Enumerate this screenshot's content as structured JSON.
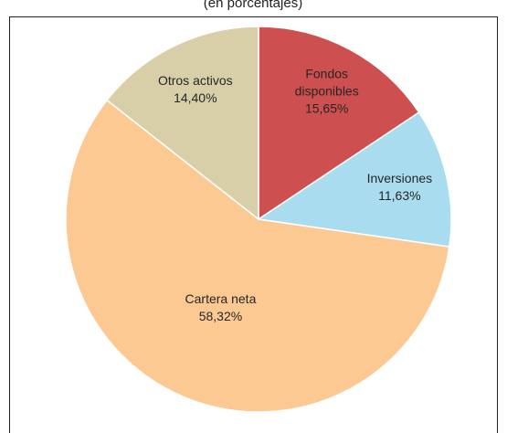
{
  "chart_data": {
    "type": "pie",
    "title": "(en porcentajes)",
    "categories": [
      "Fondos disponibles",
      "Inversiones",
      "Cartera neta",
      "Otros activos"
    ],
    "values": [
      15.65,
      11.63,
      58.32,
      14.4
    ],
    "value_labels": [
      "15,65%",
      "11,63%",
      "58,32%",
      "14,40%"
    ],
    "colors": [
      "#cd4f4f",
      "#a9dcef",
      "#fcc993",
      "#d8cfa9"
    ]
  }
}
